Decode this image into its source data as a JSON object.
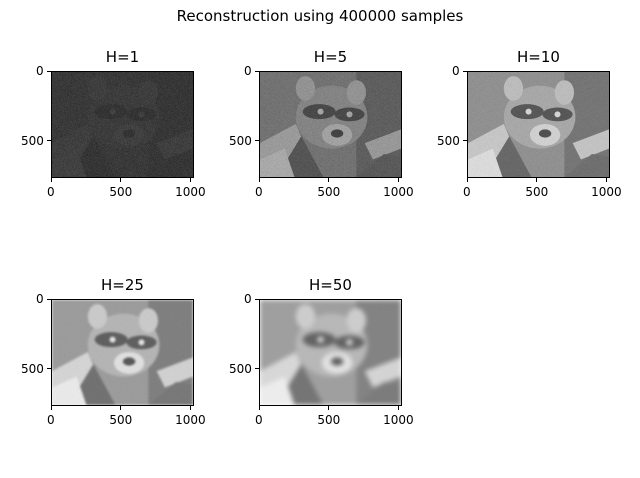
{
  "figure": {
    "suptitle": "Reconstruction using 400000 samples"
  },
  "chart_data": [
    {
      "type": "heatmap",
      "title": "H=1",
      "x_ticks": [
        0,
        500,
        1000
      ],
      "y_ticks": [
        0,
        500
      ],
      "xlim": [
        0,
        1024
      ],
      "ylim": [
        768,
        0
      ],
      "colormap": "gray",
      "brightness": 0.1,
      "blur": 0,
      "noise": 0.8
    },
    {
      "type": "heatmap",
      "title": "H=5",
      "x_ticks": [
        0,
        500,
        1000
      ],
      "y_ticks": [
        0,
        500
      ],
      "xlim": [
        0,
        1024
      ],
      "ylim": [
        768,
        0
      ],
      "colormap": "gray",
      "brightness": 0.7,
      "blur": 0,
      "noise": 0.6
    },
    {
      "type": "heatmap",
      "title": "H=10",
      "x_ticks": [
        0,
        500,
        1000
      ],
      "y_ticks": [
        0,
        500
      ],
      "xlim": [
        0,
        1024
      ],
      "ylim": [
        768,
        0
      ],
      "colormap": "gray",
      "brightness": 0.95,
      "blur": 0.4,
      "noise": 0.35
    },
    {
      "type": "heatmap",
      "title": "H=25",
      "x_ticks": [
        0,
        500,
        1000
      ],
      "y_ticks": [
        0,
        500
      ],
      "xlim": [
        0,
        1024
      ],
      "ylim": [
        768,
        0
      ],
      "colormap": "gray",
      "brightness": 1.0,
      "blur": 1.2,
      "noise": 0.15
    },
    {
      "type": "heatmap",
      "title": "H=50",
      "x_ticks": [
        0,
        500,
        1000
      ],
      "y_ticks": [
        0,
        500
      ],
      "xlim": [
        0,
        1024
      ],
      "ylim": [
        768,
        0
      ],
      "colormap": "gray",
      "brightness": 1.0,
      "blur": 3,
      "noise": 0.05
    }
  ]
}
